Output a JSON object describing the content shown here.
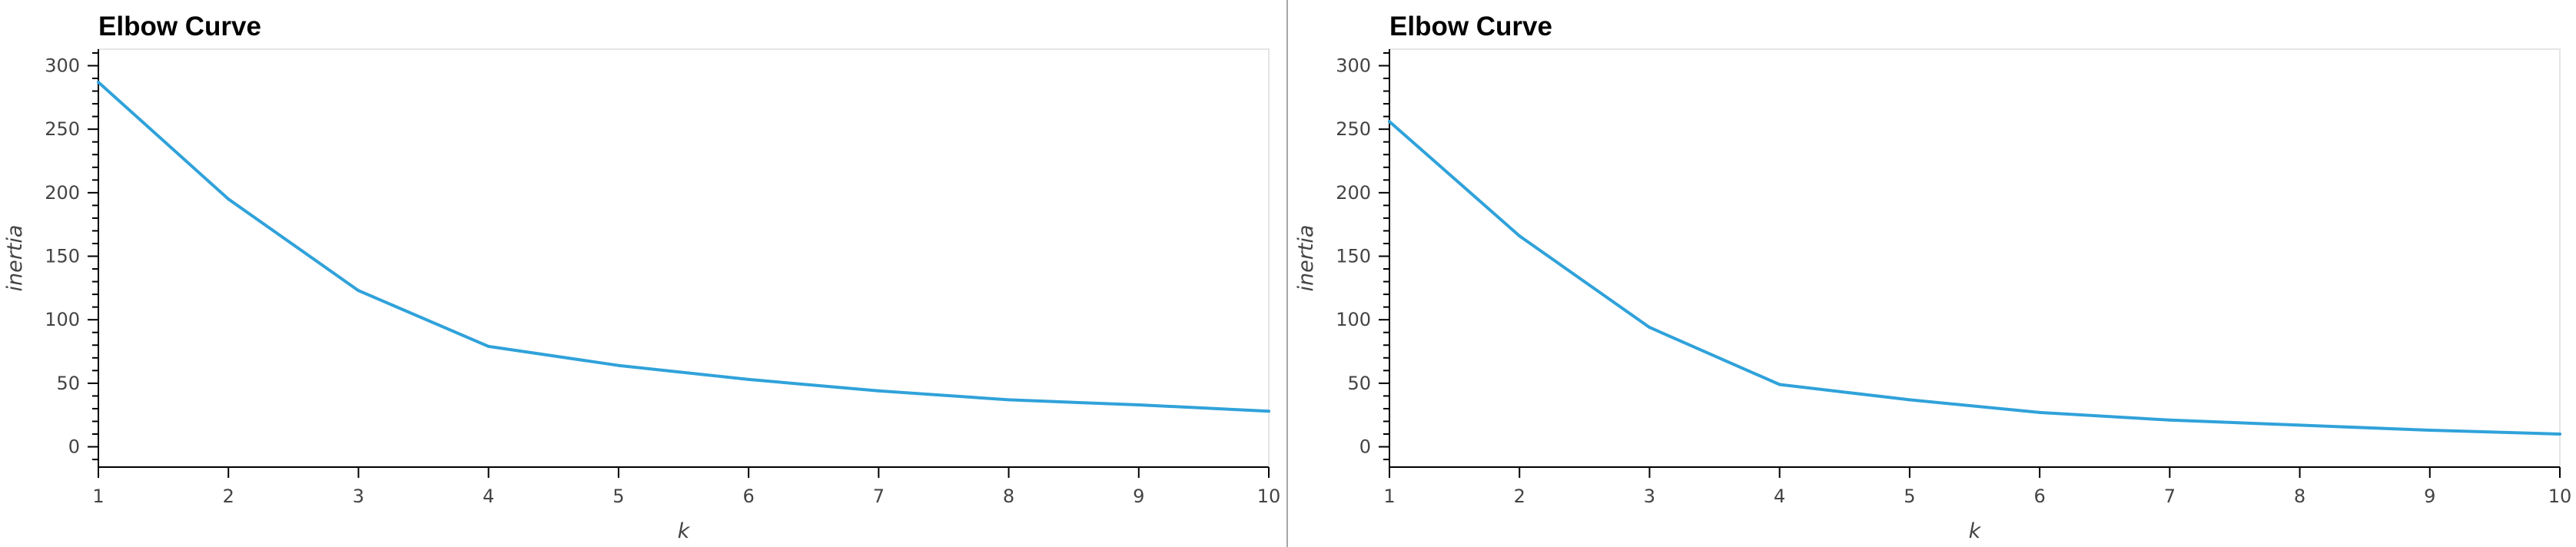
{
  "chart_data": [
    {
      "type": "line",
      "title": "Elbow Curve",
      "xlabel": "k",
      "ylabel": "inertia",
      "x": [
        1,
        2,
        3,
        4,
        5,
        6,
        7,
        8,
        9,
        10
      ],
      "series": [
        {
          "name": "inertia",
          "values": [
            287,
            195,
            123,
            79,
            64,
            53,
            44,
            37,
            33,
            28
          ]
        }
      ],
      "xticks": [
        "1",
        "2",
        "3",
        "4",
        "5",
        "6",
        "7",
        "8",
        "9",
        "10"
      ],
      "yticks": [
        "0",
        "50",
        "100",
        "150",
        "200",
        "250",
        "300"
      ],
      "xlim": [
        1,
        10
      ],
      "ylim": [
        -16,
        313
      ],
      "grid": false,
      "line_color": "#30a2da"
    },
    {
      "type": "line",
      "title": "Elbow Curve",
      "xlabel": "k",
      "ylabel": "inertia",
      "x": [
        1,
        2,
        3,
        4,
        5,
        6,
        7,
        8,
        9,
        10
      ],
      "series": [
        {
          "name": "inertia",
          "values": [
            256,
            166,
            94,
            49,
            37,
            27,
            21,
            17,
            13,
            10
          ]
        }
      ],
      "xticks": [
        "1",
        "2",
        "3",
        "4",
        "5",
        "6",
        "7",
        "8",
        "9",
        "10"
      ],
      "yticks": [
        "0",
        "50",
        "100",
        "150",
        "200",
        "250",
        "300"
      ],
      "xlim": [
        1,
        10
      ],
      "ylim": [
        -16,
        313
      ],
      "grid": false,
      "line_color": "#30a2da"
    }
  ],
  "colors": {
    "axis": "#000000",
    "frame": "#e5e5e5",
    "divider": "#a6a6a6"
  }
}
